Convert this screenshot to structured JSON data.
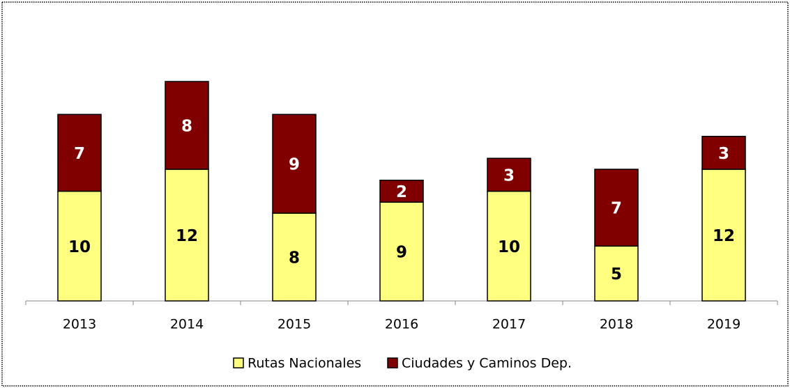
{
  "chart_data": {
    "type": "bar",
    "stacked": true,
    "categories": [
      "2013",
      "2014",
      "2015",
      "2016",
      "2017",
      "2018",
      "2019"
    ],
    "series": [
      {
        "name": "Rutas Nacionales",
        "color": "#ffff80",
        "label_color": "#000000",
        "values": [
          10,
          12,
          8,
          9,
          10,
          5,
          12
        ]
      },
      {
        "name": "Ciudades y Caminos Dep.",
        "color": "#800000",
        "label_color": "#ffffff",
        "values": [
          7,
          8,
          9,
          2,
          3,
          7,
          3
        ]
      }
    ]
  }
}
